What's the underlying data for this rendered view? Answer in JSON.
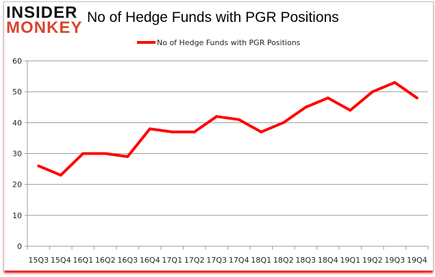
{
  "logo": {
    "line1": "INSIDER",
    "line2": "MONKEY"
  },
  "chart_data": {
    "type": "line",
    "title": "No of Hedge Funds with PGR Positions",
    "xlabel": "",
    "ylabel": "",
    "categories": [
      "15Q3",
      "15Q4",
      "16Q1",
      "16Q2",
      "16Q3",
      "16Q4",
      "17Q1",
      "17Q2",
      "17Q3",
      "17Q4",
      "18Q1",
      "18Q2",
      "18Q3",
      "18Q4",
      "19Q1",
      "19Q2",
      "19Q3",
      "19Q4"
    ],
    "series": [
      {
        "name": "No of Hedge Funds with PGR Positions",
        "values": [
          26,
          23,
          30,
          30,
          29,
          38,
          37,
          37,
          42,
          41,
          37,
          40,
          45,
          48,
          44,
          50,
          53,
          48
        ],
        "color": "#ff0000"
      }
    ],
    "ylim": [
      0,
      60
    ],
    "yticks": [
      0,
      10,
      20,
      30,
      40,
      50,
      60
    ],
    "grid": true,
    "legend_position": "top"
  }
}
